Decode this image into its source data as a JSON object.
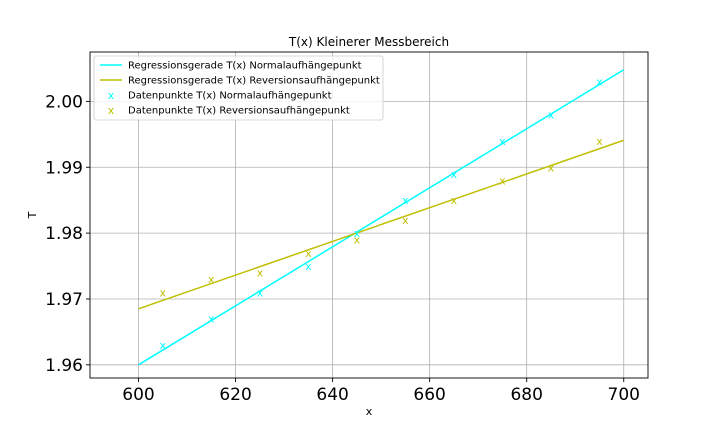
{
  "chart_data": {
    "type": "scatter",
    "title": "T(x) Kleinerer Messbereich",
    "xlabel": "x",
    "ylabel": "T",
    "xlim": [
      590,
      705
    ],
    "ylim": [
      1.958,
      2.0075
    ],
    "x_ticks": [
      600,
      620,
      640,
      660,
      680,
      700
    ],
    "y_ticks": [
      1.96,
      1.97,
      1.98,
      1.99,
      2.0
    ],
    "x_tick_labels": [
      "600",
      "620",
      "640",
      "660",
      "680",
      "700"
    ],
    "y_tick_labels": [
      "1.96",
      "1.97",
      "1.98",
      "1.99",
      "2.00"
    ],
    "grid": true,
    "legend_position": "top-left",
    "lines": [
      {
        "name": "Regressionsgerade T(x) Normalaufhängepunkt",
        "color": "#00ffff",
        "x": [
          600,
          700
        ],
        "y": [
          1.96,
          2.0048
        ]
      },
      {
        "name": "Regressionsgerade T(x) Reversionsaufhängepunkt",
        "color": "#bfbf00",
        "x": [
          600,
          700
        ],
        "y": [
          1.9685,
          1.9941
        ]
      }
    ],
    "series": [
      {
        "name": "Datenpunkte T(x) Normalaufhängepunkt",
        "color": "#00ffff",
        "marker": "x",
        "x": [
          605,
          615,
          625,
          635,
          645,
          655,
          665,
          675,
          685,
          695
        ],
        "y": [
          1.963,
          1.967,
          1.971,
          1.975,
          1.98,
          1.985,
          1.989,
          1.994,
          1.998,
          2.003
        ]
      },
      {
        "name": "Datenpunkte T(x) Reversionsaufhängepunkt",
        "color": "#bfbf00",
        "marker": "x",
        "x": [
          605,
          615,
          625,
          635,
          645,
          655,
          665,
          675,
          685,
          695
        ],
        "y": [
          1.971,
          1.973,
          1.974,
          1.977,
          1.979,
          1.982,
          1.985,
          1.988,
          1.99,
          1.994
        ]
      }
    ]
  }
}
